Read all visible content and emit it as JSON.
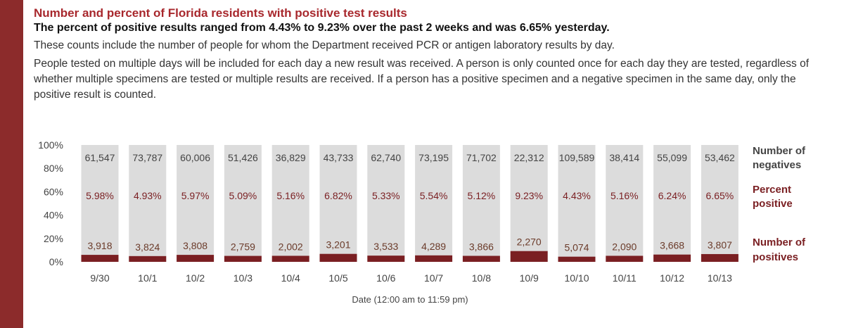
{
  "header": {
    "title": "Number and percent of Florida residents with positive test results",
    "subtitle": "The percent of positive results ranged from 4.43% to 9.23% over the past 2 weeks and was 6.65% yesterday.",
    "description_1": "These counts include the number of people for whom the Department received PCR or antigen laboratory results by day.",
    "description_2": "People tested on multiple days will be included for each day a new result was received. A person is only counted once for each day they are tested, regardless of whether multiple specimens are tested or multiple results are received. If a person has a positive specimen and a negative specimen in the same day, only the positive result is counted."
  },
  "chart_data": {
    "type": "bar",
    "stacked": true,
    "categories": [
      "9/30",
      "10/1",
      "10/2",
      "10/3",
      "10/4",
      "10/5",
      "10/6",
      "10/7",
      "10/8",
      "10/9",
      "10/10",
      "10/11",
      "10/12",
      "10/13"
    ],
    "xlabel": "Date (12:00 am to 11:59 pm)",
    "ylabel": "",
    "ylim": [
      0,
      100
    ],
    "yticks": [
      "0%",
      "20%",
      "40%",
      "60%",
      "80%",
      "100%"
    ],
    "series": [
      {
        "name": "Number of positives",
        "counts": [
          3918,
          3824,
          3808,
          2759,
          2002,
          3201,
          3533,
          4289,
          3866,
          2270,
          5074,
          2090,
          3668,
          3807
        ],
        "count_labels": [
          "3,918",
          "3,824",
          "3,808",
          "2,759",
          "2,002",
          "3,201",
          "3,533",
          "4,289",
          "3,866",
          "2,270",
          "5,074",
          "2,090",
          "3,668",
          "3,807"
        ],
        "color": "#7a1f22"
      },
      {
        "name": "Number of negatives",
        "counts": [
          61547,
          73787,
          60006,
          51426,
          36829,
          43733,
          62740,
          73195,
          71702,
          22312,
          109589,
          38414,
          55099,
          53462
        ],
        "count_labels": [
          "61,547",
          "73,787",
          "60,006",
          "51,426",
          "36,829",
          "43,733",
          "62,740",
          "73,195",
          "71,702",
          "22,312",
          "109,589",
          "38,414",
          "55,099",
          "53,462"
        ],
        "color": "#dcdcdc"
      }
    ],
    "percent_positive_name": "Percent positive",
    "percent_positive": [
      5.98,
      4.93,
      5.97,
      5.09,
      5.16,
      6.82,
      5.33,
      5.54,
      5.12,
      9.23,
      4.43,
      5.16,
      6.24,
      6.65
    ],
    "percent_positive_labels": [
      "5.98%",
      "4.93%",
      "5.97%",
      "5.09%",
      "5.16%",
      "6.82%",
      "5.33%",
      "5.54%",
      "5.12%",
      "9.23%",
      "4.43%",
      "5.16%",
      "6.24%",
      "6.65%"
    ],
    "legend": [
      {
        "label_line1": "Number of",
        "label_line2": "negatives",
        "color": "#444444"
      },
      {
        "label_line1": "Percent",
        "label_line2": "positive",
        "color": "#7a1f22"
      },
      {
        "label_line1": "Number of",
        "label_line2": "positives",
        "color": "#7a1f22"
      }
    ],
    "legend_position": "right",
    "grid": false
  }
}
